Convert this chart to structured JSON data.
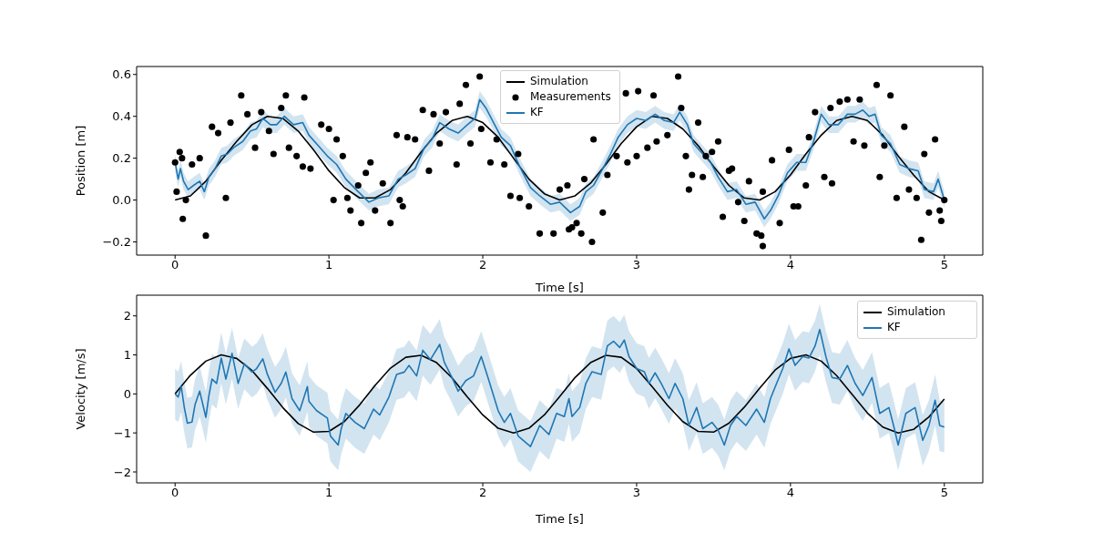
{
  "chart_data": [
    {
      "type": "line",
      "xlabel": "Time [s]",
      "ylabel": "Position [m]",
      "xlim": [
        -0.25,
        5.25
      ],
      "xticks": [
        0,
        1,
        2,
        3,
        4,
        5
      ],
      "ylim": [
        -0.263,
        0.638
      ],
      "yticks": [
        {
          "value": -0.2,
          "label": "−0.2"
        },
        {
          "value": 0,
          "label": "0.0"
        },
        0.2,
        0.4,
        0.6
      ],
      "grid": false,
      "legend": "top",
      "series": [
        {
          "name": "Simulation",
          "type": "line",
          "color": "#000000",
          "x": [
            0,
            0.1,
            0.2,
            0.3,
            0.4,
            0.5,
            0.6,
            0.7,
            0.8,
            0.9,
            1,
            1.1,
            1.2,
            1.3,
            1.4,
            1.5,
            1.6,
            1.7,
            1.8,
            1.9,
            2,
            2.1,
            2.2,
            2.3,
            2.4,
            2.5,
            2.6,
            2.7,
            2.8,
            2.9,
            3,
            3.1,
            3.2,
            3.3,
            3.4,
            3.5,
            3.6,
            3.7,
            3.8,
            3.9,
            4,
            4.1,
            4.2,
            4.3,
            4.4,
            4.5,
            4.6,
            4.7,
            4.8,
            4.9,
            5
          ],
          "values": [
            0,
            0.02,
            0.09,
            0.19,
            0.28,
            0.36,
            0.4,
            0.39,
            0.33,
            0.24,
            0.14,
            0.06,
            0.01,
            0.01,
            0.05,
            0.13,
            0.23,
            0.32,
            0.38,
            0.4,
            0.37,
            0.3,
            0.2,
            0.1,
            0.03,
            0,
            0.02,
            0.08,
            0.17,
            0.27,
            0.35,
            0.4,
            0.39,
            0.34,
            0.26,
            0.16,
            0.07,
            0.01,
            0,
            0.04,
            0.12,
            0.22,
            0.31,
            0.38,
            0.4,
            0.38,
            0.31,
            0.21,
            0.12,
            0.04,
            0
          ]
        },
        {
          "name": "Measurements",
          "type": "scatter",
          "marker": "circle",
          "color": "#000000",
          "x": [
            0,
            0.03,
            0.045,
            0.01,
            0.05,
            0.07,
            0.11,
            0.16,
            0.2,
            0.24,
            0.28,
            0.33,
            0.36,
            0.43,
            0.47,
            0.52,
            0.56,
            0.61,
            0.64,
            0.69,
            0.72,
            0.74,
            0.79,
            0.84,
            0.83,
            0.88,
            0.95,
            1.0,
            1.05,
            1.03,
            1.09,
            1.12,
            1.14,
            1.19,
            1.21,
            1.24,
            1.27,
            1.3,
            1.35,
            1.4,
            1.44,
            1.46,
            1.48,
            1.51,
            1.56,
            1.61,
            1.65,
            1.68,
            1.72,
            1.76,
            1.83,
            1.85,
            1.89,
            1.92,
            1.98,
            1.99,
            2.05,
            2.09,
            2.14,
            2.18,
            2.23,
            2.24,
            2.3,
            2.37,
            2.46,
            2.5,
            2.56,
            2.58,
            2.64,
            2.71,
            2.61,
            2.55,
            2.66,
            2.72,
            2.78,
            2.81,
            2.87,
            2.93,
            2.94,
            3.01,
            3.0,
            3.07,
            3.11,
            3.13,
            3.2,
            3.27,
            3.29,
            3.32,
            3.34,
            3.36,
            3.4,
            3.43,
            3.45,
            3.49,
            3.53,
            3.56,
            3.6,
            3.62,
            3.66,
            3.7,
            3.73,
            3.78,
            3.81,
            3.82,
            3.82,
            3.88,
            3.93,
            3.99,
            4.02,
            4.05,
            4.1,
            4.12,
            4.16,
            4.22,
            4.27,
            4.26,
            4.32,
            4.37,
            4.41,
            4.45,
            4.48,
            4.56,
            4.58,
            4.61,
            4.65,
            4.69,
            4.74,
            4.77,
            4.82,
            4.85,
            4.87,
            4.9,
            4.94,
            4.97,
            4.98,
            5.0
          ],
          "values": [
            0.18,
            0.23,
            0.2,
            0.04,
            -0.09,
            0,
            0.17,
            0.2,
            -0.17,
            0.35,
            0.32,
            0.01,
            0.37,
            0.5,
            0.41,
            0.25,
            0.42,
            0.33,
            0.22,
            0.44,
            0.5,
            0.25,
            0.21,
            0.49,
            0.16,
            0.15,
            0.36,
            0.34,
            0.29,
            0,
            0.21,
            0.01,
            -0.05,
            0.07,
            -0.11,
            0.13,
            0.18,
            -0.05,
            0.08,
            -0.11,
            0.31,
            0,
            -0.03,
            0.3,
            0.29,
            0.43,
            0.14,
            0.41,
            0.27,
            0.42,
            0.17,
            0.46,
            0.55,
            0.27,
            0.59,
            0.34,
            0.18,
            0.29,
            0.17,
            0.02,
            0.22,
            0.01,
            -0.03,
            -0.16,
            -0.16,
            0.05,
            -0.14,
            -0.13,
            -0.16,
            -0.2,
            -0.11,
            0.07,
            0.1,
            0.29,
            -0.06,
            0.12,
            0.21,
            0.51,
            0.18,
            0.52,
            0.21,
            0.25,
            0.5,
            0.28,
            0.31,
            0.59,
            0.44,
            0.21,
            0.05,
            0.12,
            0.37,
            0.11,
            0.21,
            0.23,
            0.28,
            -0.08,
            0.14,
            0.15,
            -0.01,
            -0.1,
            0.09,
            -0.16,
            -0.17,
            -0.22,
            0.04,
            0.19,
            -0.11,
            0.24,
            -0.03,
            -0.03,
            0.07,
            0.3,
            0.42,
            0.11,
            0.08,
            0.44,
            0.47,
            0.48,
            0.28,
            0.48,
            0.26,
            0.55,
            0.11,
            0.26,
            0.5,
            0.01,
            0.35,
            0.05,
            0.01,
            -0.19,
            0.22,
            -0.06,
            0.29,
            -0.05,
            -0.1,
            0
          ]
        },
        {
          "name": "KF",
          "type": "line",
          "color": "#1f77b4",
          "x": [
            0,
            0.02,
            0.035,
            0.055,
            0.085,
            0.12,
            0.16,
            0.19,
            0.22,
            0.26,
            0.3,
            0.34,
            0.38,
            0.44,
            0.49,
            0.53,
            0.57,
            0.62,
            0.66,
            0.71,
            0.77,
            0.83,
            0.87,
            0.93,
            0.99,
            1.05,
            1.11,
            1.19,
            1.26,
            1.32,
            1.39,
            1.45,
            1.5,
            1.56,
            1.62,
            1.67,
            1.72,
            1.78,
            1.84,
            1.9,
            1.95,
            1.98,
            2.02,
            2.07,
            2.12,
            2.18,
            2.24,
            2.31,
            2.37,
            2.44,
            2.5,
            2.57,
            2.63,
            2.67,
            2.72,
            2.78,
            2.83,
            2.88,
            2.94,
            3.0,
            3.06,
            3.12,
            3.18,
            3.24,
            3.28,
            3.33,
            3.37,
            3.43,
            3.48,
            3.53,
            3.59,
            3.65,
            3.71,
            3.77,
            3.83,
            3.87,
            3.92,
            3.98,
            4.04,
            4.1,
            4.15,
            4.2,
            4.25,
            4.31,
            4.37,
            4.42,
            4.47,
            4.51,
            4.55,
            4.59,
            4.65,
            4.71,
            4.77,
            4.83,
            4.87,
            4.93,
            4.96,
            5.0
          ],
          "values": [
            0.18,
            0.1,
            0.15,
            0.09,
            0.05,
            0.07,
            0.09,
            0.04,
            0.11,
            0.15,
            0.21,
            0.22,
            0.25,
            0.28,
            0.33,
            0.34,
            0.39,
            0.36,
            0.36,
            0.4,
            0.36,
            0.37,
            0.31,
            0.26,
            0.21,
            0.17,
            0.1,
            0.04,
            -0.01,
            0.01,
            0.02,
            0.1,
            0.12,
            0.15,
            0.25,
            0.29,
            0.37,
            0.34,
            0.32,
            0.36,
            0.39,
            0.48,
            0.44,
            0.37,
            0.3,
            0.26,
            0.16,
            0.06,
            0.02,
            -0.02,
            -0.01,
            -0.06,
            -0.03,
            0.04,
            0.07,
            0.15,
            0.22,
            0.3,
            0.36,
            0.39,
            0.38,
            0.41,
            0.38,
            0.37,
            0.42,
            0.36,
            0.27,
            0.22,
            0.18,
            0.11,
            0.04,
            0.05,
            -0.02,
            -0.01,
            -0.09,
            -0.05,
            0.02,
            0.13,
            0.18,
            0.18,
            0.28,
            0.41,
            0.36,
            0.36,
            0.41,
            0.41,
            0.43,
            0.4,
            0.41,
            0.31,
            0.27,
            0.17,
            0.15,
            0.14,
            0.05,
            0.04,
            0.1,
            0.0
          ],
          "lower": [
            0.14,
            0.06,
            0.11,
            0.05,
            0.01,
            0.03,
            0.05,
            0,
            0.07,
            0.11,
            0.17,
            0.18,
            0.21,
            0.24,
            0.29,
            0.3,
            0.35,
            0.32,
            0.32,
            0.36,
            0.32,
            0.33,
            0.27,
            0.22,
            0.17,
            0.13,
            0.06,
            0,
            -0.05,
            -0.03,
            -0.02,
            0.06,
            0.08,
            0.11,
            0.21,
            0.25,
            0.33,
            0.3,
            0.28,
            0.32,
            0.35,
            0.44,
            0.4,
            0.33,
            0.26,
            0.22,
            0.12,
            0.02,
            -0.02,
            -0.06,
            -0.05,
            -0.1,
            -0.07,
            0,
            0.03,
            0.11,
            0.18,
            0.26,
            0.32,
            0.35,
            0.34,
            0.37,
            0.34,
            0.33,
            0.38,
            0.32,
            0.23,
            0.18,
            0.14,
            0.07,
            0,
            0.01,
            -0.06,
            -0.05,
            -0.13,
            -0.09,
            -0.02,
            0.09,
            0.14,
            0.14,
            0.24,
            0.37,
            0.32,
            0.32,
            0.37,
            0.37,
            0.39,
            0.36,
            0.37,
            0.27,
            0.23,
            0.13,
            0.11,
            0.1,
            0.01,
            0,
            0.06,
            -0.04
          ],
          "upper": [
            0.22,
            0.14,
            0.19,
            0.13,
            0.09,
            0.11,
            0.13,
            0.08,
            0.15,
            0.19,
            0.25,
            0.26,
            0.29,
            0.32,
            0.37,
            0.38,
            0.43,
            0.4,
            0.4,
            0.44,
            0.4,
            0.41,
            0.35,
            0.3,
            0.25,
            0.21,
            0.14,
            0.08,
            0.03,
            0.05,
            0.06,
            0.14,
            0.16,
            0.19,
            0.29,
            0.33,
            0.41,
            0.38,
            0.36,
            0.4,
            0.43,
            0.52,
            0.48,
            0.41,
            0.34,
            0.3,
            0.2,
            0.1,
            0.06,
            0.02,
            0.03,
            -0.02,
            0.01,
            0.08,
            0.11,
            0.19,
            0.26,
            0.34,
            0.4,
            0.43,
            0.42,
            0.45,
            0.42,
            0.41,
            0.46,
            0.4,
            0.31,
            0.26,
            0.22,
            0.15,
            0.08,
            0.09,
            0.02,
            0.03,
            -0.05,
            -0.01,
            0.06,
            0.17,
            0.22,
            0.22,
            0.32,
            0.45,
            0.4,
            0.4,
            0.45,
            0.45,
            0.47,
            0.44,
            0.45,
            0.35,
            0.31,
            0.21,
            0.19,
            0.18,
            0.09,
            0.08,
            0.14,
            0.04
          ]
        }
      ]
    },
    {
      "type": "line",
      "xlabel": "Time [s]",
      "ylabel": "Velocity [m/s]",
      "xlim": [
        -0.25,
        5.25
      ],
      "xticks": [
        0,
        1,
        2,
        3,
        4,
        5
      ],
      "ylim": [
        -2.28,
        2.53
      ],
      "yticks": [
        {
          "value": -2,
          "label": "−2"
        },
        {
          "value": -1,
          "label": "−1"
        },
        0,
        1,
        2
      ],
      "grid": false,
      "legend": "top right",
      "series": [
        {
          "name": "Simulation",
          "type": "line",
          "color": "#000000",
          "x": [
            0,
            0.1,
            0.2,
            0.3,
            0.4,
            0.5,
            0.6,
            0.7,
            0.8,
            0.9,
            1,
            1.1,
            1.2,
            1.3,
            1.4,
            1.5,
            1.6,
            1.7,
            1.8,
            1.9,
            2,
            2.1,
            2.2,
            2.3,
            2.4,
            2.5,
            2.6,
            2.7,
            2.8,
            2.9,
            3,
            3.1,
            3.2,
            3.3,
            3.4,
            3.5,
            3.6,
            3.7,
            3.8,
            3.9,
            4,
            4.1,
            4.2,
            4.3,
            4.4,
            4.5,
            4.6,
            4.7,
            4.8,
            4.9,
            5
          ],
          "values": [
            0,
            0.48,
            0.84,
            1,
            0.91,
            0.6,
            0.14,
            -0.35,
            -0.76,
            -0.98,
            -0.96,
            -0.71,
            -0.28,
            0.22,
            0.66,
            0.94,
            0.99,
            0.8,
            0.41,
            -0.08,
            -0.54,
            -0.88,
            -1,
            -0.88,
            -0.54,
            -0.07,
            0.42,
            0.8,
            0.99,
            0.94,
            0.65,
            0.19,
            -0.29,
            -0.71,
            -0.96,
            -0.98,
            -0.75,
            -0.34,
            0.15,
            0.61,
            0.91,
            1,
            0.84,
            0.47,
            -0.01,
            -0.49,
            -0.85,
            -1,
            -0.91,
            -0.59,
            -0.13
          ]
        },
        {
          "name": "KF",
          "type": "line",
          "color": "#1f77b4",
          "x": [
            0,
            0.02,
            0.04,
            0.06,
            0.08,
            0.11,
            0.13,
            0.16,
            0.2,
            0.22,
            0.24,
            0.27,
            0.3,
            0.33,
            0.37,
            0.41,
            0.45,
            0.5,
            0.53,
            0.57,
            0.6,
            0.65,
            0.69,
            0.72,
            0.76,
            0.81,
            0.86,
            0.87,
            0.92,
            0.99,
            1.01,
            1.06,
            1.08,
            1.11,
            1.17,
            1.23,
            1.29,
            1.33,
            1.39,
            1.44,
            1.49,
            1.52,
            1.57,
            1.61,
            1.66,
            1.72,
            1.75,
            1.8,
            1.84,
            1.89,
            1.94,
            1.99,
            2.04,
            2.1,
            2.14,
            2.18,
            2.23,
            2.31,
            2.37,
            2.43,
            2.48,
            2.53,
            2.56,
            2.58,
            2.63,
            2.67,
            2.71,
            2.77,
            2.81,
            2.85,
            2.89,
            2.92,
            2.95,
            3.0,
            3.05,
            3.08,
            3.12,
            3.16,
            3.21,
            3.25,
            3.3,
            3.34,
            3.39,
            3.43,
            3.49,
            3.53,
            3.57,
            3.61,
            3.65,
            3.71,
            3.78,
            3.83,
            3.87,
            3.91,
            3.95,
            3.99,
            4.03,
            4.08,
            4.12,
            4.16,
            4.19,
            4.23,
            4.27,
            4.32,
            4.37,
            4.42,
            4.47,
            4.53,
            4.58,
            4.64,
            4.67,
            4.7,
            4.75,
            4.81,
            4.86,
            4.9,
            4.94,
            4.97,
            5.0
          ],
          "values": [
            0,
            -0.08,
            0.19,
            -0.35,
            -0.75,
            -0.72,
            -0.27,
            0.07,
            -0.6,
            -0.04,
            0.38,
            0.27,
            0.92,
            0.38,
            1.04,
            0.27,
            0.77,
            0.56,
            0.65,
            0.9,
            0.5,
            0.04,
            0.27,
            0.56,
            -0.12,
            -0.43,
            0.19,
            -0.19,
            -0.43,
            -0.62,
            -1.08,
            -1.31,
            -0.89,
            -0.5,
            -0.73,
            -0.89,
            -0.39,
            -0.54,
            -0.08,
            0.5,
            0.56,
            0.73,
            0.46,
            1.12,
            0.88,
            1.27,
            0.81,
            0.42,
            0.07,
            0.34,
            0.46,
            0.96,
            0.34,
            -0.43,
            -0.73,
            -0.5,
            -1.08,
            -1.35,
            -0.81,
            -1.04,
            -0.5,
            -0.58,
            -0.12,
            -0.58,
            -0.35,
            0.27,
            0.57,
            0.5,
            1.23,
            1.35,
            1.19,
            1.38,
            0.96,
            0.65,
            0.57,
            0.27,
            0.54,
            0.27,
            -0.12,
            0.27,
            -0.12,
            -0.81,
            -0.35,
            -0.89,
            -0.73,
            -0.93,
            -1.31,
            -0.81,
            -0.58,
            -0.81,
            -0.39,
            -0.73,
            -0.12,
            0.27,
            0.65,
            1.15,
            0.73,
            0.96,
            0.92,
            1.23,
            1.65,
            0.96,
            0.42,
            0.38,
            0.73,
            0.27,
            -0.04,
            0.42,
            -0.5,
            -0.35,
            -0.81,
            -1.31,
            -0.5,
            -0.35,
            -1.19,
            -0.81,
            -0.16,
            -0.81,
            -0.85
          ],
          "lower": [
            -0.65,
            -0.73,
            -0.46,
            -1,
            -1.4,
            -1.37,
            -0.92,
            -0.58,
            -1.25,
            -0.69,
            -0.27,
            -0.38,
            0.27,
            -0.27,
            0.39,
            -0.38,
            0.12,
            -0.09,
            0,
            0.25,
            -0.15,
            -0.61,
            -0.38,
            -0.09,
            -0.77,
            -1.08,
            -0.46,
            -0.84,
            -1.08,
            -1.27,
            -1.73,
            -1.96,
            -1.54,
            -1.15,
            -1.38,
            -1.54,
            -1.04,
            -1.19,
            -0.73,
            -0.15,
            -0.09,
            0.08,
            -0.19,
            0.47,
            0.23,
            0.62,
            0.16,
            -0.23,
            -0.58,
            -0.31,
            -0.19,
            0.31,
            -0.31,
            -1.08,
            -1.38,
            -1.15,
            -1.73,
            -2,
            -1.46,
            -1.69,
            -1.15,
            -1.23,
            -0.77,
            -1.23,
            -1,
            -0.38,
            -0.08,
            -0.15,
            0.58,
            0.7,
            0.54,
            0.73,
            0.31,
            0,
            -0.08,
            -0.38,
            -0.11,
            -0.38,
            -0.77,
            -0.38,
            -0.77,
            -1.46,
            -1,
            -1.54,
            -1.38,
            -1.58,
            -1.96,
            -1.46,
            -1.23,
            -1.46,
            -1.04,
            -1.38,
            -0.77,
            -0.38,
            0,
            0.5,
            0.08,
            0.31,
            0.27,
            0.58,
            1,
            0.31,
            -0.23,
            -0.27,
            0.08,
            -0.38,
            -0.69,
            -0.23,
            -1.15,
            -1,
            -1.46,
            -1.96,
            -1.15,
            -1,
            -1.84,
            -1.46,
            -0.81,
            -1.46,
            -1.5
          ],
          "upper": [
            0.65,
            0.57,
            0.84,
            0.3,
            -0.1,
            -0.07,
            0.38,
            0.72,
            0.05,
            0.61,
            1.03,
            0.92,
            1.57,
            1.03,
            1.69,
            0.92,
            1.42,
            1.21,
            1.3,
            1.55,
            1.15,
            0.69,
            0.92,
            1.21,
            0.53,
            0.22,
            0.84,
            0.46,
            0.22,
            0.03,
            -0.43,
            -0.66,
            -0.24,
            0.15,
            -0.08,
            -0.24,
            0.26,
            0.11,
            0.57,
            1.15,
            1.21,
            1.38,
            1.11,
            1.77,
            1.53,
            1.92,
            1.46,
            1.07,
            0.72,
            0.99,
            1.11,
            1.61,
            0.99,
            0.22,
            -0.08,
            0.15,
            -0.43,
            -0.7,
            -0.16,
            -0.39,
            0.15,
            0.07,
            0.53,
            0.07,
            0.3,
            0.92,
            1.22,
            1.15,
            1.88,
            2,
            1.84,
            2.03,
            1.61,
            1.3,
            1.22,
            0.92,
            1.19,
            0.92,
            0.53,
            0.92,
            0.53,
            -0.16,
            0.3,
            -0.24,
            -0.08,
            -0.28,
            -0.66,
            -0.16,
            0.07,
            -0.16,
            0.26,
            -0.08,
            0.53,
            0.92,
            1.3,
            1.8,
            1.38,
            1.61,
            1.57,
            1.88,
            2.3,
            1.61,
            1.07,
            1.03,
            1.38,
            0.92,
            0.61,
            1.07,
            0.15,
            0.3,
            -0.16,
            -0.66,
            0.15,
            0.3,
            -0.54,
            -0.16,
            0.49,
            -0.16,
            -0.2
          ]
        }
      ]
    }
  ]
}
